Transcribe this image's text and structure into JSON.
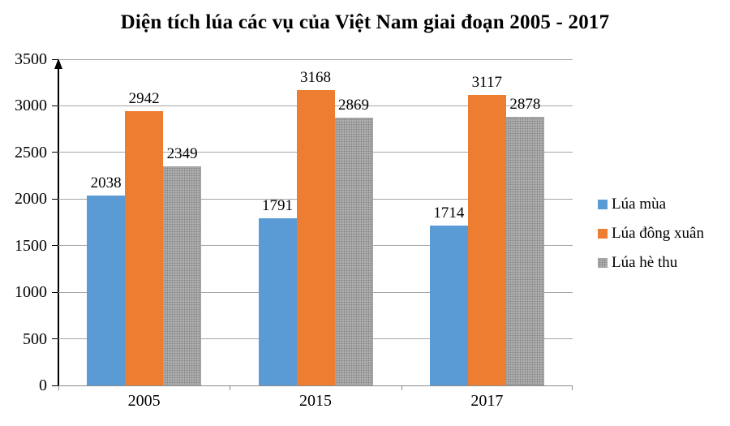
{
  "chart_data": {
    "type": "bar",
    "title": "Diện tích lúa các vụ của Việt Nam giai đoạn 2005 - 2017",
    "categories": [
      "2005",
      "2015",
      "2017"
    ],
    "series": [
      {
        "name": "Lúa mùa",
        "color": "#5B9BD5",
        "pattern": null,
        "values": [
          2038,
          1791,
          1714
        ]
      },
      {
        "name": "Lúa đông xuân",
        "color": "#ED7D31",
        "pattern": null,
        "values": [
          2942,
          3168,
          3117
        ]
      },
      {
        "name": "Lúa hè thu",
        "color": "#AFAFAF",
        "pattern": "dotted",
        "values": [
          2349,
          2869,
          2878
        ]
      }
    ],
    "ylim": [
      0,
      3500
    ],
    "ytick_step": 500,
    "grid": true,
    "legend_position": "right",
    "data_labels": true,
    "xlabel": "",
    "ylabel": ""
  },
  "colors": {
    "gridline": "#A6A6A6",
    "y_axis": "#000000",
    "x_axis": "#8C8C8C",
    "background": "#FFFFFF",
    "text": "#000000"
  }
}
